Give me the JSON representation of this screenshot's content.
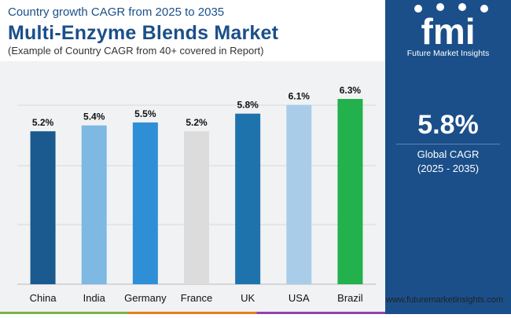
{
  "header": {
    "subtitle": "Country growth CAGR from 2025 to 2035",
    "title": "Multi-Enzyme Blends Market",
    "note": "(Example of Country CAGR from 40+ covered in Report)"
  },
  "sidebar": {
    "logo_text": "Future Market Insights",
    "kpi_value": "5.8%",
    "kpi_label": "Global CAGR",
    "kpi_period": "(2025 - 2035)"
  },
  "footer": {
    "website": "www.futuremarketinsights.com"
  },
  "colors": {
    "brand_blue": "#1b4f8a",
    "stripe": [
      "#7cb342",
      "#e67e22",
      "#8e44ad"
    ]
  },
  "chart_data": {
    "type": "bar",
    "categories": [
      "China",
      "India",
      "Germany",
      "France",
      "UK",
      "USA",
      "Brazil"
    ],
    "values": [
      5.2,
      5.4,
      5.5,
      5.2,
      5.8,
      6.1,
      6.3
    ],
    "value_labels": [
      "5.2%",
      "5.4%",
      "5.5%",
      "5.2%",
      "5.8%",
      "6.1%",
      "6.3%"
    ],
    "colors": [
      "#1a5a8e",
      "#7db9e3",
      "#2f8fd6",
      "#dcdcdc",
      "#1f73ad",
      "#a9cde9",
      "#22b14c"
    ],
    "ylim": [
      0,
      6.3
    ],
    "grid": true
  }
}
